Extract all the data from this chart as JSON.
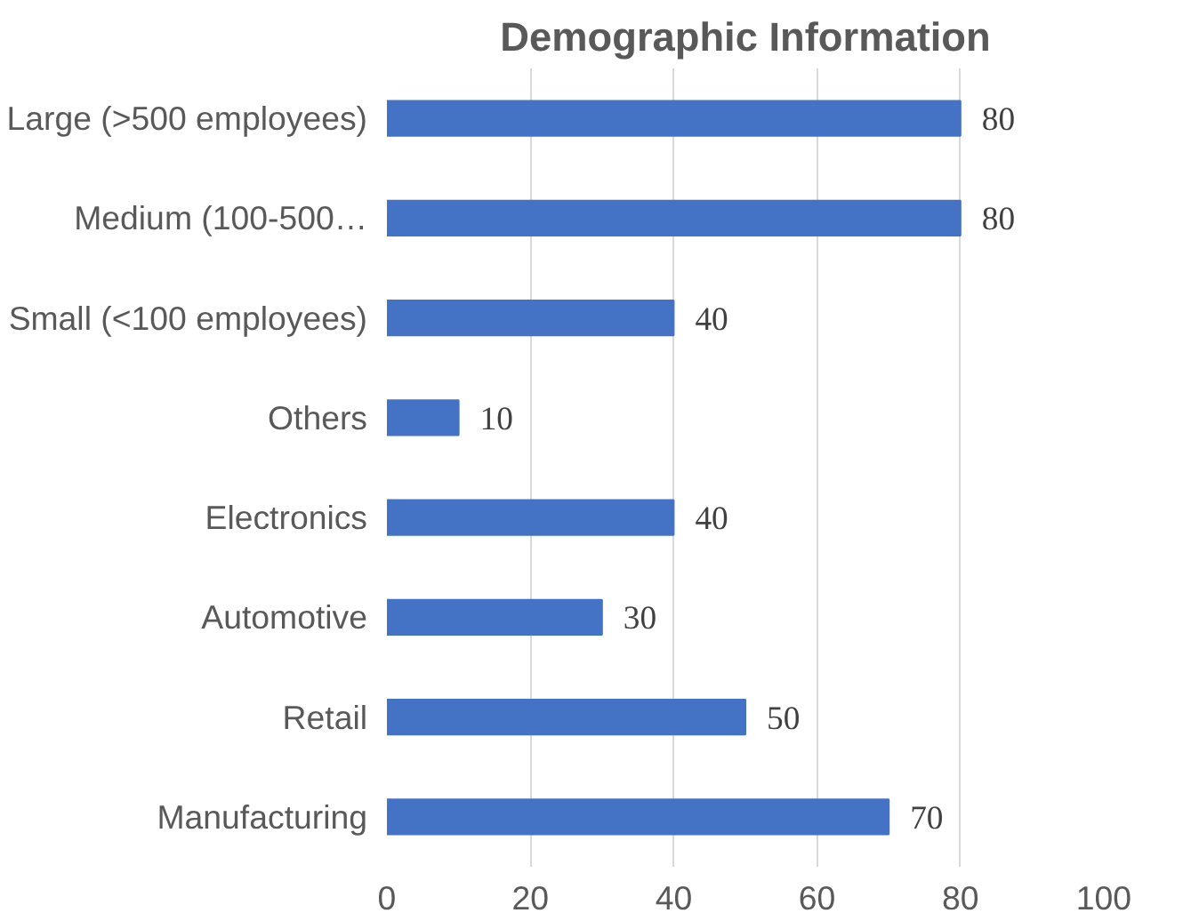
{
  "chart_data": {
    "type": "bar",
    "orientation": "horizontal",
    "title": "Demographic Information",
    "categories": [
      "Large (>500 employees)",
      "Medium (100-500…",
      "Small (<100 employees)",
      "Others",
      "Electronics",
      "Automotive",
      "Retail",
      "Manufacturing"
    ],
    "values": [
      80,
      80,
      40,
      10,
      40,
      30,
      50,
      70
    ],
    "color": "#4472c4",
    "xlim": [
      0,
      100
    ],
    "xticks": [
      0,
      20,
      40,
      60,
      80,
      100
    ],
    "grid": "x",
    "data_labels": true
  }
}
